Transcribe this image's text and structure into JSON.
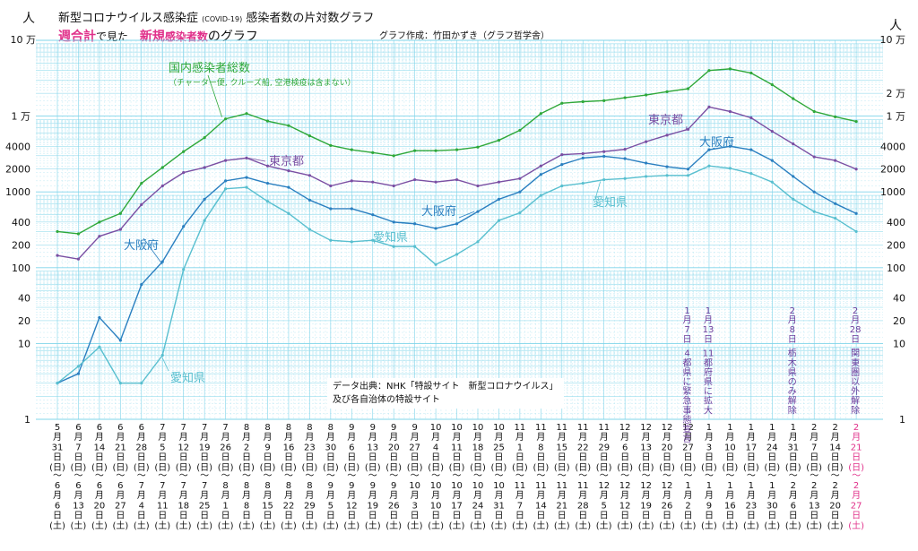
{
  "header": {
    "title_main": "新型コロナウイルス感染症",
    "title_small": "(COVID-19)",
    "title_rest": "感染者数の片対数グラフ",
    "sub_a": "週合計",
    "sub_b": "で見た",
    "sub_c": "新規",
    "sub_d": "感染者数",
    "sub_e": "のグラフ",
    "credit": "グラフ作成：竹田かずき（グラフ哲学舎）"
  },
  "source": {
    "line1": "データ出典：NHK「特設サイト　新型コロナウイルス」",
    "line2": "及び各自治体の特設サイト"
  },
  "colors": {
    "national": "#2fa83a",
    "tokyo": "#7a4fa3",
    "osaka": "#2a7fc0",
    "aichi": "#58bfcf",
    "grid": "#7fd4ea",
    "pink": "#e0308a",
    "annotation": "#6a3c9c"
  },
  "chart_data": {
    "type": "line",
    "yscale": "log",
    "ylim": [
      1,
      100000
    ],
    "ylabel": "人",
    "y_ticks": [
      "1",
      "10",
      "20",
      "40",
      "100",
      "200",
      "400",
      "1000",
      "2000",
      "4000",
      "1 万",
      "2 万",
      "10 万"
    ],
    "categories": [
      "5月31日〜6月6日",
      "6月7日〜6月13日",
      "6月14日〜6月20日",
      "6月21日〜6月27日",
      "6月28日〜7月4日",
      "7月5日〜7月11日",
      "7月12日〜7月18日",
      "7月19日〜7月25日",
      "7月26日〜8月1日",
      "8月2日〜8月8日",
      "8月9日〜8月15日",
      "8月16日〜8月22日",
      "8月23日〜8月29日",
      "8月30日〜9月5日",
      "9月6日〜9月12日",
      "9月13日〜9月19日",
      "9月20日〜9月26日",
      "9月27日〜10月3日",
      "10月4日〜10月10日",
      "10月11日〜10月17日",
      "10月18日〜10月24日",
      "10月25日〜10月31日",
      "11月1日〜11月7日",
      "11月8日〜11月14日",
      "11月15日〜11月21日",
      "11月22日〜11月28日",
      "11月29日〜12月5日",
      "12月6日〜12月12日",
      "12月13日〜12月19日",
      "12月20日〜12月26日",
      "12月27日〜1月2日",
      "1月3日〜1月9日",
      "1月10日〜1月16日",
      "1月17日〜1月23日",
      "1月24日〜1月30日",
      "1月31日〜2月6日",
      "2月7日〜2月13日",
      "2月14日〜2月20日",
      "2月21日〜2月27日"
    ],
    "cat_top": [
      "5\n月\n31\n日\n(日)",
      "6\n月\n7\n日\n(日)",
      "6\n月\n14\n日\n(日)",
      "6\n月\n21\n日\n(日)",
      "6\n月\n28\n日\n(日)",
      "7\n月\n5\n日\n(日)",
      "7\n月\n12\n日\n(日)",
      "7\n月\n19\n日\n(日)",
      "7\n月\n26\n日\n(日)",
      "8\n月\n2\n日\n(日)",
      "8\n月\n9\n日\n(日)",
      "8\n月\n16\n日\n(日)",
      "8\n月\n23\n日\n(日)",
      "8\n月\n30\n日\n(日)",
      "9\n月\n6\n日\n(日)",
      "9\n月\n13\n日\n(日)",
      "9\n月\n20\n日\n(日)",
      "9\n月\n27\n日\n(日)",
      "10\n月\n4\n日\n(日)",
      "10\n月\n11\n日\n(日)",
      "10\n月\n18\n日\n(日)",
      "10\n月\n25\n日\n(日)",
      "11\n月\n1\n日\n(日)",
      "11\n月\n8\n日\n(日)",
      "11\n月\n15\n日\n(日)",
      "11\n月\n22\n日\n(日)",
      "11\n月\n29\n日\n(日)",
      "12\n月\n6\n日\n(日)",
      "12\n月\n13\n日\n(日)",
      "12\n月\n20\n日\n(日)",
      "12\n月\n27\n日\n(日)",
      "1\n月\n3\n日\n(日)",
      "1\n月\n10\n日\n(日)",
      "1\n月\n17\n日\n(日)",
      "1\n月\n24\n日\n(日)",
      "1\n月\n31\n日\n(日)",
      "2\n月\n7\n日\n(日)",
      "2\n月\n14\n日\n(日)",
      "2\n月\n21\n日\n(日)"
    ],
    "cat_bottom": [
      "6\n月\n6\n日\n(土)",
      "6\n月\n13\n日\n(土)",
      "6\n月\n20\n日\n(土)",
      "6\n月\n27\n日\n(土)",
      "7\n月\n4\n日\n(土)",
      "7\n月\n11\n日\n(土)",
      "7\n月\n18\n日\n(土)",
      "7\n月\n25\n日\n(土)",
      "8\n月\n1\n日\n(土)",
      "8\n月\n8\n日\n(土)",
      "8\n月\n15\n日\n(土)",
      "8\n月\n22\n日\n(土)",
      "8\n月\n29\n日\n(土)",
      "9\n月\n5\n日\n(土)",
      "9\n月\n12\n日\n(土)",
      "9\n月\n19\n日\n(土)",
      "9\n月\n26\n日\n(土)",
      "10\n月\n3\n日\n(土)",
      "10\n月\n10\n日\n(土)",
      "10\n月\n17\n日\n(土)",
      "10\n月\n24\n日\n(土)",
      "10\n月\n31\n日\n(土)",
      "11\n月\n7\n日\n(土)",
      "11\n月\n14\n日\n(土)",
      "11\n月\n21\n日\n(土)",
      "11\n月\n28\n日\n(土)",
      "12\n月\n5\n日\n(土)",
      "12\n月\n12\n日\n(土)",
      "12\n月\n19\n日\n(土)",
      "12\n月\n26\n日\n(土)",
      "1\n月\n2\n日\n(土)",
      "1\n月\n9\n日\n(土)",
      "1\n月\n16\n日\n(土)",
      "1\n月\n23\n日\n(土)",
      "1\n月\n30\n日\n(土)",
      "2\n月\n6\n日\n(土)",
      "2\n月\n13\n日\n(土)",
      "2\n月\n20\n日\n(土)",
      "2\n月\n27\n日\n(土)"
    ],
    "series": [
      {
        "key": "national",
        "name": "国内感染者総数",
        "sub": "（チャーター便, クルーズ船, 空港検疫は含まない）",
        "values": [
          300,
          280,
          400,
          520,
          1300,
          2100,
          3400,
          5200,
          9200,
          10800,
          8600,
          7500,
          5500,
          4100,
          3600,
          3300,
          3000,
          3500,
          3500,
          3600,
          3900,
          4800,
          6500,
          10800,
          14800,
          15500,
          16000,
          17500,
          19000,
          21000,
          23000,
          40000,
          42000,
          37000,
          26000,
          17000,
          11500,
          9800,
          8500
        ]
      },
      {
        "key": "tokyo",
        "name": "東京都",
        "values": [
          145,
          130,
          260,
          320,
          680,
          1200,
          1800,
          2100,
          2600,
          2800,
          2200,
          1900,
          1650,
          1200,
          1400,
          1350,
          1200,
          1450,
          1350,
          1450,
          1200,
          1350,
          1500,
          2200,
          3100,
          3200,
          3400,
          3650,
          4600,
          5600,
          6700,
          13200,
          11500,
          9500,
          6300,
          4300,
          2900,
          2600,
          2000
        ]
      },
      {
        "key": "osaka",
        "name": "大阪府",
        "values": [
          3,
          4,
          22,
          11,
          60,
          120,
          350,
          800,
          1400,
          1550,
          1300,
          1150,
          780,
          600,
          600,
          500,
          400,
          380,
          330,
          380,
          550,
          800,
          1000,
          1700,
          2300,
          2800,
          2950,
          2750,
          2400,
          2150,
          2000,
          3600,
          4000,
          3600,
          2600,
          1600,
          1000,
          700,
          520
        ]
      },
      {
        "key": "aichi",
        "name": "愛知県",
        "values": [
          3,
          5,
          9,
          3,
          3,
          7,
          95,
          420,
          1100,
          1150,
          750,
          520,
          320,
          230,
          220,
          230,
          190,
          190,
          110,
          150,
          220,
          420,
          530,
          900,
          1200,
          1300,
          1450,
          1500,
          1600,
          1650,
          1650,
          2200,
          2050,
          1750,
          1350,
          800,
          550,
          450,
          300
        ]
      }
    ],
    "annotations": [
      {
        "text": "1月7日 4都県に緊急事態宣言",
        "tokens": [
          "1",
          "月",
          "7",
          "日",
          "",
          "4",
          "都",
          "県",
          "に",
          "緊",
          "急",
          "事",
          "態",
          "宣",
          "言"
        ],
        "at_category_index": 30
      },
      {
        "text": "1月13日 11都府県に拡大",
        "tokens": [
          "1",
          "月",
          "13",
          "日",
          "",
          "11",
          "都",
          "府",
          "県",
          "に",
          "拡",
          "大"
        ],
        "at_category_index": 31
      },
      {
        "text": "2月8日 栃木県のみ解除",
        "tokens": [
          "2",
          "月",
          "8",
          "日",
          "",
          "栃",
          "木",
          "県",
          "の",
          "み",
          "解",
          "除"
        ],
        "at_category_index": 35
      },
      {
        "text": "2月28日 関東圏以外解除",
        "tokens": [
          "2",
          "月",
          "28",
          "日",
          "",
          "関",
          "東",
          "圏",
          "以",
          "外",
          "解",
          "除"
        ],
        "at_category_index": 38
      }
    ]
  }
}
